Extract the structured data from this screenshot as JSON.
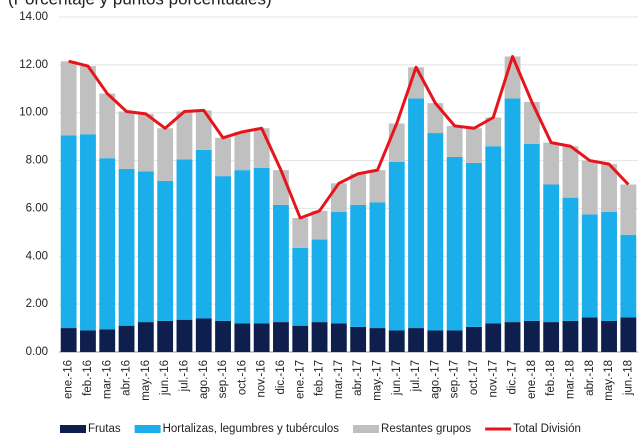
{
  "chart_data": {
    "type": "stacked-bar-line",
    "subtitle": "(Porcentaje y puntos porcentuales)",
    "categories": [
      "ene.-16",
      "feb.-16",
      "mar.-16",
      "abr.-16",
      "may.-16",
      "jun.-16",
      "jul.-16",
      "ago.-16",
      "sep.-16",
      "oct.-16",
      "nov.-16",
      "dic.-16",
      "ene.-17",
      "feb.-17",
      "mar.-17",
      "abr.-17",
      "may.-17",
      "jun.-17",
      "jul.-17",
      "ago.-17",
      "sep.-17",
      "oct.-17",
      "nov.-17",
      "dic.-17",
      "ene.-18",
      "feb.-18",
      "mar.-18",
      "abr.-18",
      "may.-18",
      "jun.-18"
    ],
    "series": [
      {
        "name": "Frutas",
        "color": "#0e1f4d",
        "values": [
          1.0,
          0.9,
          0.95,
          1.1,
          1.25,
          1.3,
          1.35,
          1.4,
          1.3,
          1.2,
          1.2,
          1.25,
          1.1,
          1.25,
          1.2,
          1.05,
          1.0,
          0.9,
          1.0,
          0.9,
          0.9,
          1.05,
          1.2,
          1.25,
          1.3,
          1.25,
          1.3,
          1.45,
          1.3,
          1.45
        ]
      },
      {
        "name": "Hortalizas, legumbres y tubérculos",
        "color": "#1aaeea",
        "values": [
          8.05,
          8.2,
          7.15,
          6.55,
          6.3,
          5.85,
          6.7,
          7.05,
          6.05,
          6.4,
          6.5,
          4.9,
          3.25,
          3.45,
          4.65,
          5.1,
          5.25,
          7.05,
          9.6,
          8.25,
          7.25,
          6.85,
          7.4,
          9.35,
          7.4,
          5.75,
          5.15,
          4.3,
          4.55,
          3.45
        ]
      },
      {
        "name": "Restantes grupos",
        "color": "#c0c0c0",
        "values": [
          3.1,
          2.85,
          2.7,
          2.4,
          2.4,
          2.2,
          2.0,
          1.65,
          1.6,
          1.6,
          1.65,
          1.45,
          1.25,
          1.2,
          1.2,
          1.3,
          1.35,
          1.6,
          1.3,
          1.25,
          1.3,
          1.45,
          1.2,
          1.75,
          1.75,
          1.75,
          2.15,
          2.25,
          2.0,
          2.1
        ]
      },
      {
        "name": "Total División",
        "type": "line",
        "color": "#e8141c",
        "values": [
          12.15,
          11.95,
          10.8,
          10.05,
          9.95,
          9.35,
          10.05,
          10.1,
          8.95,
          9.2,
          9.35,
          7.6,
          5.6,
          5.9,
          7.05,
          7.45,
          7.6,
          9.55,
          11.9,
          10.4,
          9.45,
          9.35,
          9.8,
          12.35,
          10.45,
          8.75,
          8.6,
          8.0,
          7.85,
          7.0
        ]
      }
    ],
    "ylim": [
      0,
      14
    ],
    "yticks": [
      {
        "value": 0,
        "label": "0.00"
      },
      {
        "value": 2,
        "label": "2.00"
      },
      {
        "value": 4,
        "label": "4.00"
      },
      {
        "value": 6,
        "label": "6.00"
      },
      {
        "value": 8,
        "label": "8.00"
      },
      {
        "value": 10,
        "label": "10.00"
      },
      {
        "value": 12,
        "label": "12.00"
      },
      {
        "value": 14,
        "label": "14.00"
      }
    ],
    "grid": true
  }
}
